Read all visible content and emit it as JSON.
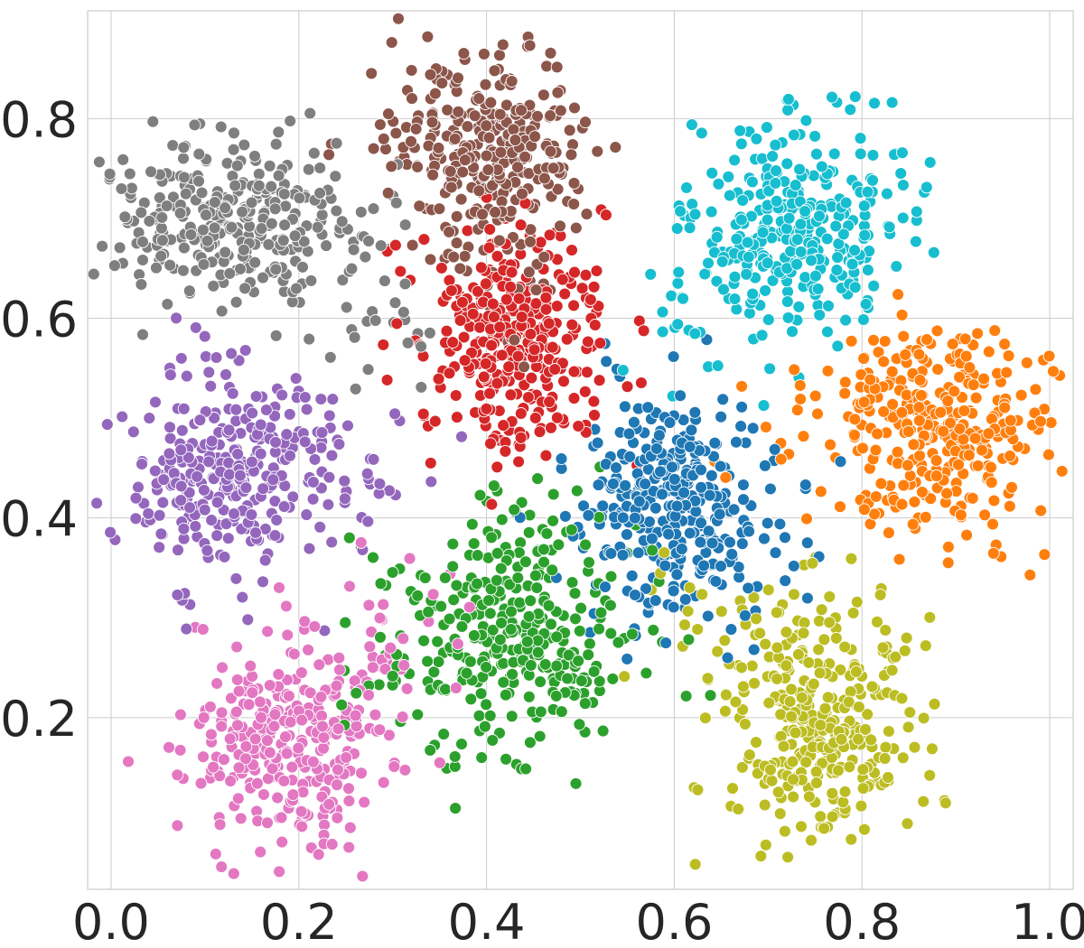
{
  "chart_data": {
    "type": "scatter",
    "title": "",
    "xlabel": "",
    "ylabel": "",
    "xlim": [
      -0.025,
      1.025
    ],
    "ylim": [
      0.028,
      0.908
    ],
    "grid": true,
    "legend": "none",
    "x_ticks": [
      {
        "value": 0.0,
        "label": "0.0"
      },
      {
        "value": 0.2,
        "label": "0.2"
      },
      {
        "value": 0.4,
        "label": "0.4"
      },
      {
        "value": 0.6,
        "label": "0.6"
      },
      {
        "value": 0.8,
        "label": "0.8"
      },
      {
        "value": 1.0,
        "label": "1.0"
      }
    ],
    "y_ticks": [
      {
        "value": 0.2,
        "label": "0.2"
      },
      {
        "value": 0.4,
        "label": "0.4"
      },
      {
        "value": 0.6,
        "label": "0.6"
      },
      {
        "value": 0.8,
        "label": "0.8"
      }
    ],
    "clusters": [
      {
        "color": "#1f77b4",
        "center": [
          0.6,
          0.41
        ],
        "spread": [
          0.055,
          0.06
        ]
      },
      {
        "color": "#ff7f0e",
        "center": [
          0.89,
          0.49
        ],
        "spread": [
          0.06,
          0.055
        ]
      },
      {
        "color": "#2ca02c",
        "center": [
          0.42,
          0.27
        ],
        "spread": [
          0.075,
          0.065
        ]
      },
      {
        "color": "#d62728",
        "center": [
          0.43,
          0.58
        ],
        "spread": [
          0.05,
          0.055
        ]
      },
      {
        "color": "#9467bd",
        "center": [
          0.12,
          0.45
        ],
        "spread": [
          0.055,
          0.055
        ]
      },
      {
        "color": "#8c564b",
        "center": [
          0.4,
          0.77
        ],
        "spread": [
          0.05,
          0.05
        ]
      },
      {
        "color": "#e377c2",
        "center": [
          0.19,
          0.17
        ],
        "spread": [
          0.055,
          0.055
        ]
      },
      {
        "color": "#7f7f7f",
        "center": [
          0.13,
          0.7
        ],
        "spread": [
          0.075,
          0.04
        ]
      },
      {
        "color": "#bcbd22",
        "center": [
          0.76,
          0.2
        ],
        "spread": [
          0.05,
          0.06
        ]
      },
      {
        "color": "#17becf",
        "center": [
          0.73,
          0.69
        ],
        "spread": [
          0.055,
          0.055
        ]
      }
    ]
  }
}
